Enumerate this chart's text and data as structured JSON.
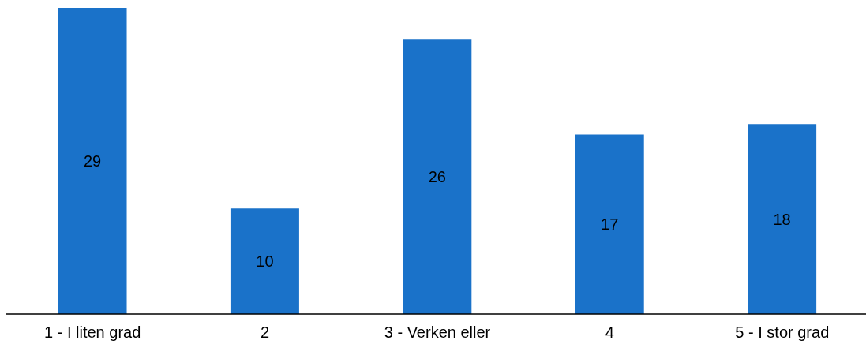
{
  "chart_data": {
    "type": "bar",
    "categories": [
      "1 - I liten grad",
      "2",
      "3 - Verken eller",
      "4",
      "5 - I stor grad"
    ],
    "values": [
      29,
      10,
      26,
      17,
      18
    ],
    "color": "#1a72c9",
    "data_labels": true
  }
}
